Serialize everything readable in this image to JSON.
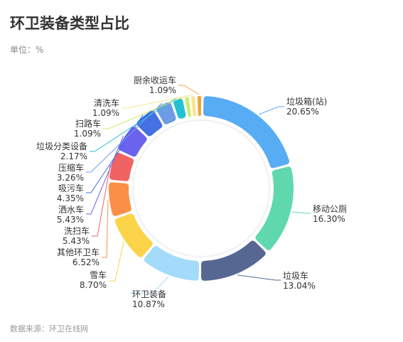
{
  "title": "环卫装备类型占比",
  "unit_label": "单位：%",
  "source": "数据来源：环卫在线网",
  "chart_data": {
    "type": "pie",
    "donut": true,
    "title": "环卫装备类型占比",
    "unit": "%",
    "legend": "none",
    "slices": [
      {
        "name": "垃圾箱(站)",
        "value": 20.65,
        "label": "20.65%",
        "color": "#58acf4"
      },
      {
        "name": "移动公厕",
        "value": 16.3,
        "label": "16.30%",
        "color": "#5fd8ae"
      },
      {
        "name": "垃圾车",
        "value": 13.04,
        "label": "13.04%",
        "color": "#566892"
      },
      {
        "name": "环卫装备",
        "value": 10.87,
        "label": "10.87%",
        "color": "#a4dbfa"
      },
      {
        "name": "雪车",
        "value": 8.7,
        "label": "8.70%",
        "color": "#fcd44a"
      },
      {
        "name": "其他环卫车",
        "value": 6.52,
        "label": "6.52%",
        "color": "#fb8f48"
      },
      {
        "name": "洗扫车",
        "value": 5.43,
        "label": "5.43%",
        "color": "#f06363"
      },
      {
        "name": "洒水车",
        "value": 5.43,
        "label": "5.43%",
        "color": "#6b62ee"
      },
      {
        "name": "吸污车",
        "value": 4.35,
        "label": "4.35%",
        "color": "#4470e2"
      },
      {
        "name": "压缩车",
        "value": 3.26,
        "label": "3.26%",
        "color": "#6c9ce6"
      },
      {
        "name": "垃圾分类设备",
        "value": 2.17,
        "label": "2.17%",
        "color": "#22c2d4"
      },
      {
        "name": "扫路车",
        "value": 1.09,
        "label": "1.09%",
        "color": "#c9ec67"
      },
      {
        "name": "清洗车",
        "value": 1.09,
        "label": "1.09%",
        "color": "#f8e48e"
      },
      {
        "name": "厨余收运车",
        "value": 1.09,
        "label": "1.09%",
        "color": "#f3a33c"
      }
    ]
  }
}
